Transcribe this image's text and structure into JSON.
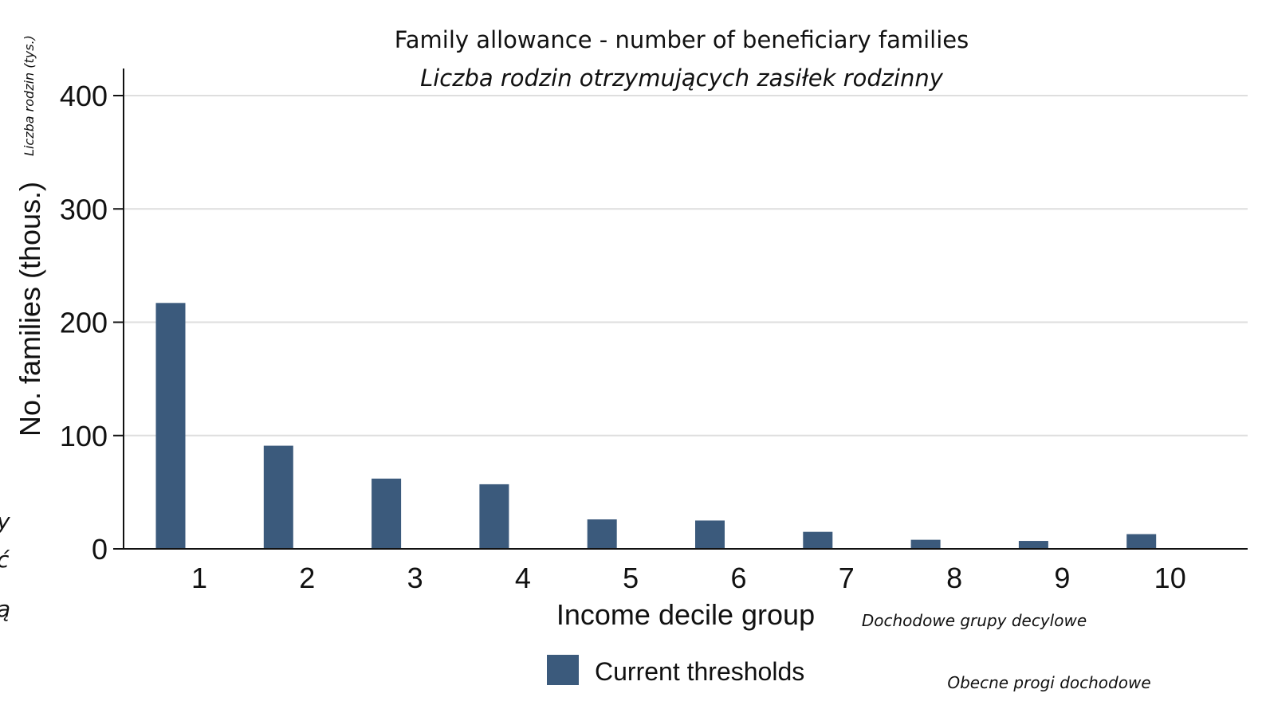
{
  "chart_data": {
    "type": "bar",
    "title": "Family allowance - number of beneficiary families",
    "subtitle": "Liczba rodzin otrzymujących zasiłek rodzinny",
    "xlabel": "Income decile group",
    "xlabel_pl": "Dochodowe grupy decylowe",
    "ylabel": "No. families (thous.)",
    "ylabel_pl": "Liczba rodzin (tys.)",
    "categories": [
      "1",
      "2",
      "3",
      "4",
      "5",
      "6",
      "7",
      "8",
      "9",
      "10"
    ],
    "series": [
      {
        "name": "Current thresholds",
        "name_pl": "Obecne progi dochodowe",
        "color": "#3b5a7c",
        "values": [
          217,
          91,
          62,
          57,
          26,
          25,
          15,
          8,
          7,
          13
        ]
      }
    ],
    "ylim": [
      0,
      400
    ],
    "yticks": [
      0,
      100,
      200,
      300,
      400
    ],
    "grid": true,
    "legend_position": "bottom-center"
  },
  "cut_off_text": [
    "y",
    "ć",
    "ą"
  ]
}
